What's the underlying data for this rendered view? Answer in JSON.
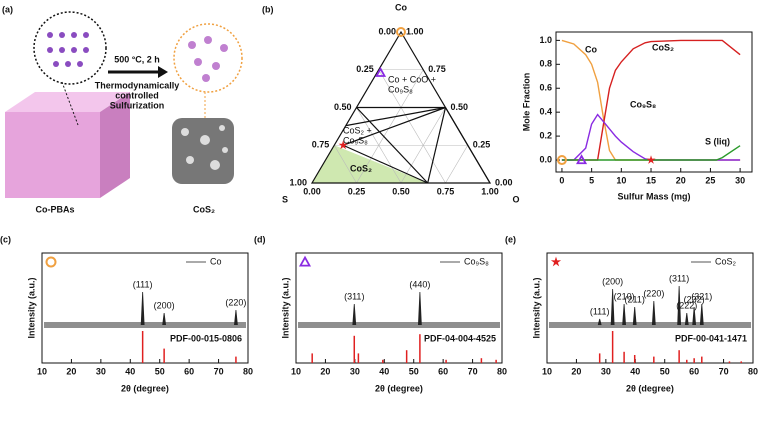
{
  "schematic": {
    "label": "(a)",
    "arrow_top": "500 °C, 2 h",
    "arrow_bottom": [
      "Thermodynamically",
      "controlled",
      "Sulfurization"
    ],
    "left": "Co-PBAs",
    "right": "CoS₂"
  },
  "chart_data": [
    {
      "type": "ternary",
      "label": "(b)",
      "corners": {
        "top": "Co",
        "left": "S",
        "right": "O"
      },
      "ticks": [
        {
          "value": 0,
          "label": "0.00"
        },
        {
          "value": 0.25,
          "label": "0.25"
        },
        {
          "value": 0.5,
          "label": "0.50"
        },
        {
          "value": 0.75,
          "label": "0.75"
        },
        {
          "value": 1,
          "label": "1.00"
        }
      ],
      "regions": [
        [
          "Co + CoO +",
          "Co₉S₈"
        ],
        [
          "CoS₂ +",
          "Co₉S₈"
        ],
        [
          "CoS₂"
        ]
      ],
      "markers": [
        {
          "shape": "circle",
          "color": "#f0a040",
          "co": 1,
          "s": 0
        },
        {
          "shape": "triangle",
          "color": "#8a2be2",
          "co": 0.73,
          "s": 0.25
        },
        {
          "shape": "star",
          "color": "#e02020",
          "co": 0.25,
          "s": 0.7
        }
      ]
    },
    {
      "type": "line",
      "ylabel": "Mole Fraction",
      "xlabel": "Sulfur Mass (mg)",
      "xlim": [
        -1,
        32
      ],
      "xticks": [
        0,
        5,
        10,
        15,
        20,
        25,
        30
      ],
      "ylim": [
        -0.1,
        1.07
      ],
      "yticks": [
        {
          "value": 0,
          "label": "0.0"
        },
        0.2,
        0.4,
        0.6,
        0.8,
        {
          "value": 1,
          "label": "1.0"
        }
      ],
      "x": [
        0,
        2,
        4,
        5,
        6,
        7,
        8,
        9,
        10,
        12,
        14,
        15,
        20,
        26,
        27,
        30
      ],
      "series": [
        {
          "name": "Co",
          "color": "#f0a040",
          "values": [
            1.0,
            0.97,
            0.88,
            0.8,
            0.65,
            0.35,
            0.08,
            0,
            0,
            0,
            0,
            0,
            0,
            0,
            0,
            0
          ]
        },
        {
          "name": "CoS₂",
          "color": "#d62020",
          "values": [
            0,
            0,
            0,
            0,
            0,
            0.3,
            0.6,
            0.75,
            0.82,
            0.93,
            0.98,
            0.99,
            1.0,
            1.0,
            1.0,
            0.88
          ]
        },
        {
          "name": "Co₉S₈",
          "color": "#8a2be2",
          "values": [
            0,
            0,
            0.1,
            0.3,
            0.38,
            0.32,
            0.26,
            0.2,
            0.15,
            0.07,
            0.01,
            0,
            0,
            0,
            0,
            0
          ]
        },
        {
          "name": "S (liq)",
          "color": "#2a9a2a",
          "values": [
            0,
            0,
            0,
            0,
            0,
            0,
            0,
            0,
            0,
            0,
            0,
            0,
            0,
            0,
            0.02,
            0.12
          ]
        }
      ],
      "markers": [
        {
          "shape": "circle",
          "color": "#f0a040",
          "x": 0,
          "y": 0
        },
        {
          "shape": "triangle",
          "color": "#8a2be2",
          "x": 3.3,
          "y": 0
        },
        {
          "shape": "star",
          "color": "#e02020",
          "x": 15,
          "y": 0
        }
      ]
    },
    {
      "type": "xrd",
      "label": "(c)",
      "marker": {
        "shape": "circle",
        "color": "#f0a040"
      },
      "legend": "Co",
      "xlabel": "2θ (degree)",
      "ylabel": "Intensity (a.u.)",
      "xlim": [
        10,
        80
      ],
      "xticks": [
        10,
        20,
        30,
        40,
        50,
        60,
        70,
        80
      ],
      "peaks": [
        44.2,
        51.5,
        75.9
      ],
      "heights": [
        0.55,
        0.2,
        0.25
      ],
      "peak_labels": [
        "(111)",
        "(200)",
        "(220)"
      ],
      "reference": {
        "name": "PDF-00-015-0806",
        "positions": [
          44.2,
          51.5,
          75.9
        ],
        "heights": [
          1.0,
          0.45,
          0.2
        ]
      }
    },
    {
      "type": "xrd",
      "label": "(d)",
      "marker": {
        "shape": "triangle",
        "color": "#8a2be2"
      },
      "legend": "Co₉S₈",
      "xlabel": "2θ (degree)",
      "ylabel": "Intensity (a.u.)",
      "xlim": [
        10,
        80
      ],
      "xticks": [
        10,
        20,
        30,
        40,
        50,
        60,
        70,
        80
      ],
      "peaks": [
        29.8,
        52.1
      ],
      "heights": [
        0.35,
        0.55
      ],
      "peak_labels": [
        "(311)",
        "(440)"
      ],
      "reference": {
        "name": "PDF-04-004-4525",
        "positions": [
          15.5,
          29.8,
          31.2,
          39.5,
          47.6,
          52.1,
          61,
          73,
          78
        ],
        "heights": [
          0.3,
          0.85,
          0.3,
          0.1,
          0.4,
          0.9,
          0.1,
          0.15,
          0.1
        ]
      }
    },
    {
      "type": "xrd",
      "label": "(e)",
      "marker": {
        "shape": "star",
        "color": "#e02020"
      },
      "legend": "CoS₂",
      "xlabel": "2θ (degree)",
      "ylabel": "Intensity (a.u.)",
      "xlim": [
        10,
        80
      ],
      "xticks": [
        10,
        20,
        30,
        40,
        50,
        60,
        70,
        80
      ],
      "peaks": [
        27.9,
        32.3,
        36.2,
        39.8,
        46.3,
        54.9,
        57.5,
        60,
        62.6
      ],
      "heights": [
        0.1,
        0.6,
        0.35,
        0.3,
        0.4,
        0.65,
        0.2,
        0.3,
        0.35
      ],
      "peak_labels": [
        "(111)",
        "(200)",
        "(210)",
        "(211)",
        "(220)",
        "(311)",
        "(222)",
        "(232)",
        "(321)"
      ],
      "reference": {
        "name": "PDF-00-041-1471",
        "positions": [
          27.9,
          32.3,
          36.2,
          39.8,
          46.3,
          54.9,
          57.5,
          60,
          62.6,
          72,
          76
        ],
        "heights": [
          0.3,
          1.0,
          0.35,
          0.25,
          0.2,
          0.4,
          0.1,
          0.15,
          0.2,
          0.05,
          0.05
        ]
      }
    }
  ]
}
